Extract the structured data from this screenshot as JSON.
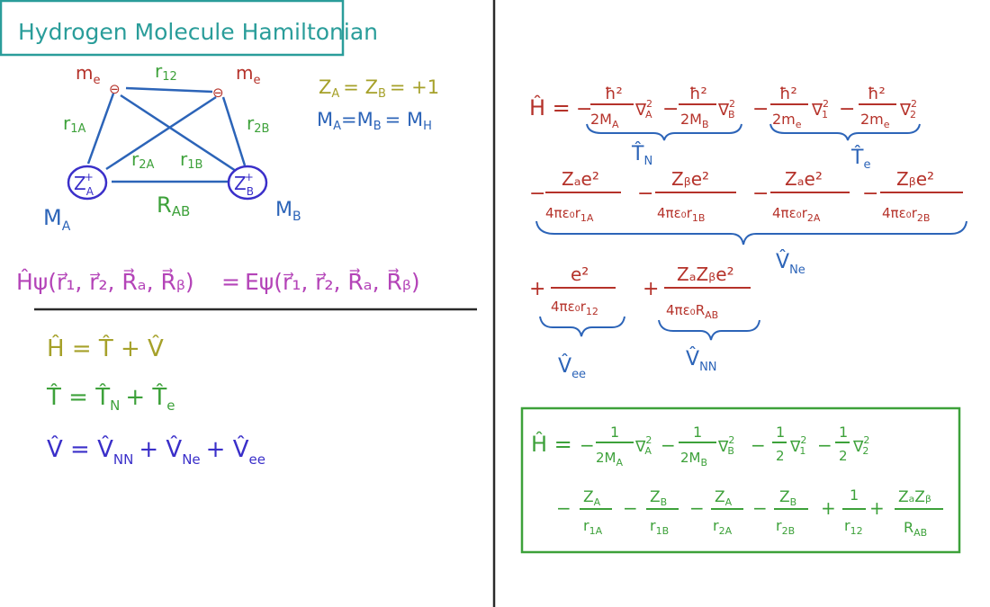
{
  "title": "Hydrogen Molecule Hamiltonian",
  "colors": {
    "teal": "#2a9d9a",
    "red": "#b5322a",
    "green": "#3da13a",
    "blue": "#2c64b8",
    "olive": "#a6a12a",
    "purple": "#b444b8",
    "violet": "#3a2fc9",
    "divider": "#2a2a2a"
  },
  "diagram": {
    "electron_mass_label": "m",
    "electron_mass_sub": "e",
    "electron_symbol": "⊖",
    "r12": "r",
    "r12_sub": "12",
    "r1A": "r",
    "r1A_sub": "1A",
    "r2B": "r",
    "r2B_sub": "2B",
    "r2A": "r",
    "r2A_sub": "2A",
    "r1B": "r",
    "r1B_sub": "1B",
    "RAB": "R",
    "RAB_sub": "AB",
    "nucleus_A": "Z",
    "nucleus_A_sub": "A",
    "nucleus_B": "Z",
    "nucleus_B_sub": "B",
    "nucleus_sup": "+",
    "mass_A": "M",
    "mass_A_sub": "A",
    "mass_B": "M",
    "mass_B_sub": "B",
    "charge_eq": "Z",
    "charge_eq_rest": "= Z",
    "charge_eq_value": "= +1",
    "mass_eq": "M",
    "mass_eq_rest": "=M",
    "mass_eq_value": "= M",
    "mass_eq_sub": "H"
  },
  "schrodinger": {
    "lhs": "Ĥψ(r⃗₁, r⃗₂, R⃗ₐ, R⃗ᵦ)",
    "eq": "=",
    "rhs": "Eψ(r⃗₁, r⃗₂, R⃗ₐ, R⃗ᵦ)"
  },
  "operators": {
    "h_line": "Ĥ = T̂ + V̂",
    "t_line": "T̂ = T̂",
    "t_sub1": "N",
    "t_plus": "+ T̂",
    "t_sub2": "e",
    "v_line": "V̂ = V̂",
    "v_sub1": "NN",
    "v_plus1": "+ V̂",
    "v_sub2": "Ne",
    "v_plus2": "+ V̂",
    "v_sub3": "ee"
  },
  "right": {
    "h_hat": "Ĥ =",
    "minus": "−",
    "plus": "+",
    "hbar2": "ħ²",
    "denom_2MA": "2M",
    "denom_2MA_sub": "A",
    "denom_2MB": "2M",
    "denom_2MB_sub": "B",
    "denom_2me": "2m",
    "denom_2me_sub": "e",
    "nabla": "∇",
    "nabla_A": "A",
    "nabla_B": "B",
    "nabla_1": "1",
    "nabla_2": "2",
    "sq": "2",
    "TN": "T̂",
    "TN_sub": "N",
    "Te": "T̂",
    "Te_sub": "e",
    "num_ZAe2": "Zₐe²",
    "num_ZBe2": "Zᵦe²",
    "den_4pi_r1A": "4πε₀r",
    "den_4pi_r1A_sub": "1A",
    "den_4pi_r1B": "4πε₀r",
    "den_4pi_r1B_sub": "1B",
    "den_4pi_r2A": "4πε₀r",
    "den_4pi_r2A_sub": "2A",
    "den_4pi_r2B": "4πε₀r",
    "den_4pi_r2B_sub": "2B",
    "VNe": "V̂",
    "VNe_sub": "Ne",
    "num_e2": "e²",
    "den_4pi_r12": "4πε₀r",
    "den_4pi_r12_sub": "12",
    "num_ZAZBe2": "ZₐZᵦe²",
    "den_4pi_RAB": "4πε₀R",
    "den_4pi_RAB_sub": "AB",
    "Vee": "V̂",
    "Vee_sub": "ee",
    "VNN": "V̂",
    "VNN_sub": "NN"
  },
  "atomic_units": {
    "h_hat": "Ĥ =",
    "one": "1",
    "half_den": "2",
    "den_2MA": "2M",
    "den_2MA_sub": "A",
    "den_2MB": "2M",
    "den_2MB_sub": "B",
    "num_ZA": "Z",
    "num_ZA_sub": "A",
    "num_ZB": "Z",
    "num_ZB_sub": "B",
    "den_r1A": "r",
    "den_r1A_sub": "1A",
    "den_r1B": "r",
    "den_r1B_sub": "1B",
    "den_r2A": "r",
    "den_r2A_sub": "2A",
    "den_r2B": "r",
    "den_r2B_sub": "2B",
    "den_r12": "r",
    "den_r12_sub": "12",
    "num_ZAZB": "ZₐZᵦ",
    "den_RAB": "R",
    "den_RAB_sub": "AB"
  }
}
